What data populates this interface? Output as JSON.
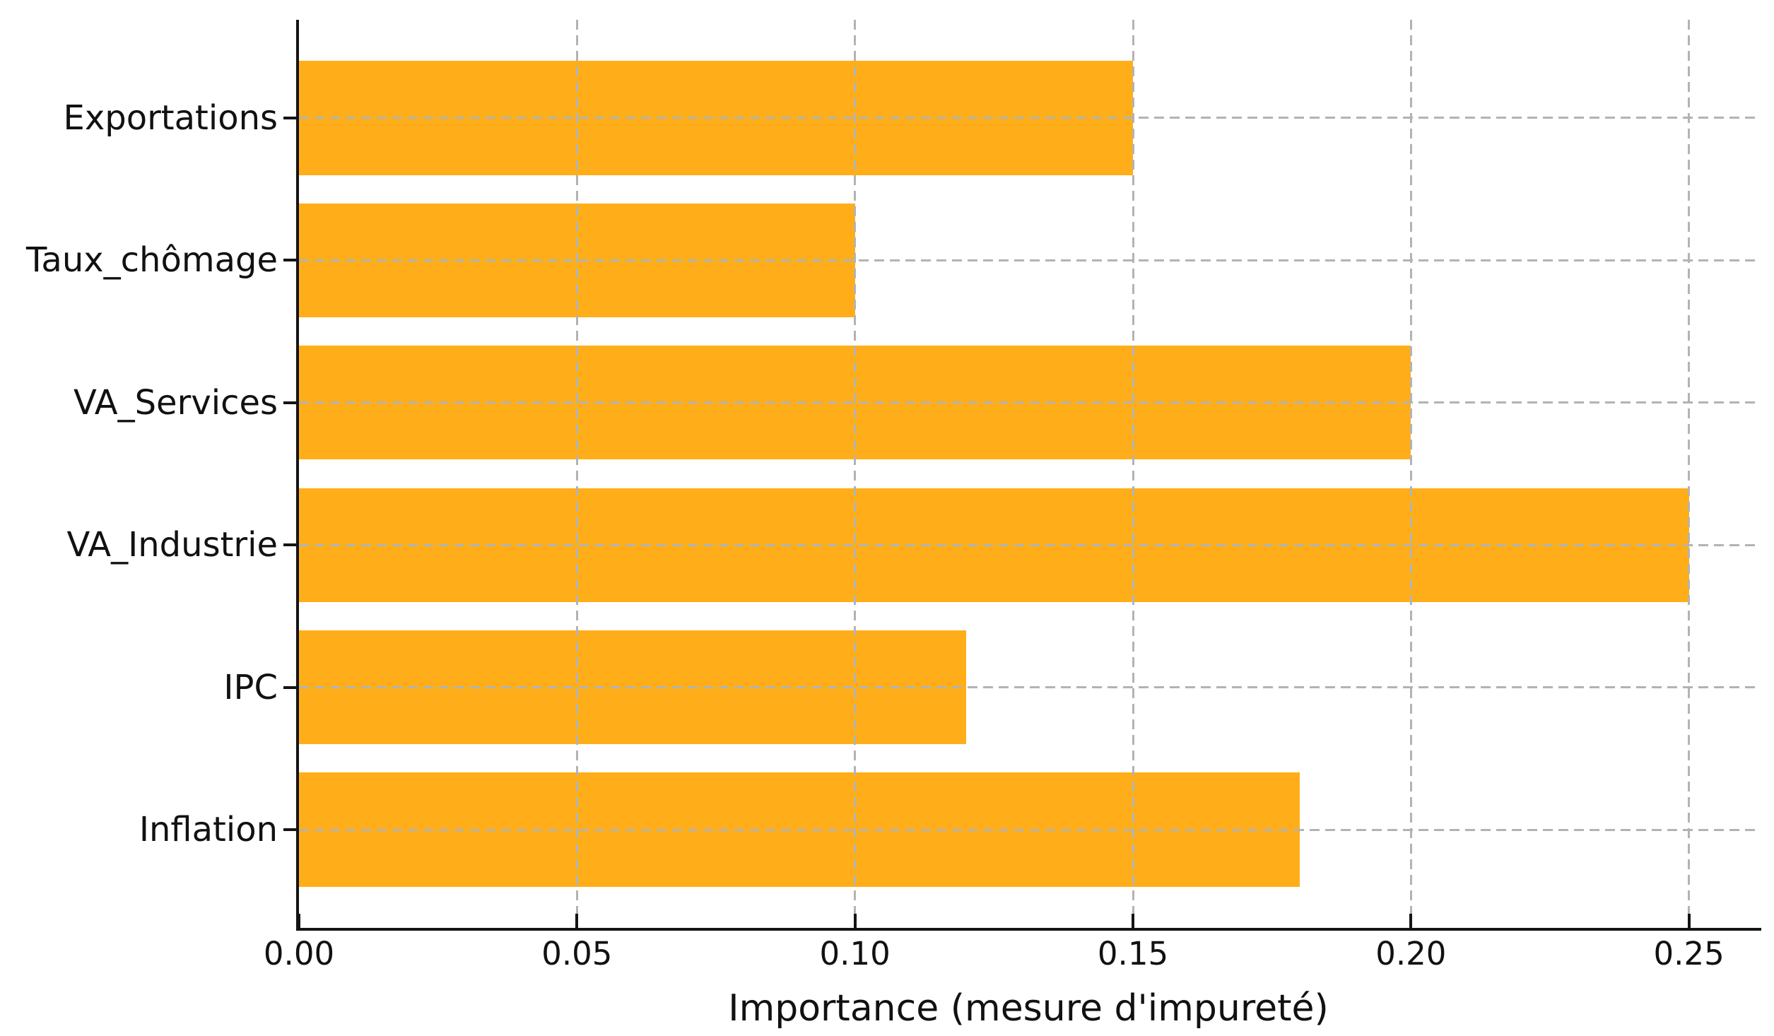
{
  "chart_data": {
    "type": "bar",
    "orientation": "horizontal",
    "title": "",
    "xlabel": "Importance (mesure d'impureté)",
    "ylabel": "",
    "categories": [
      "Exportations",
      "Taux_chômage",
      "VA_Services",
      "VA_Industrie",
      "IPC",
      "Inflation"
    ],
    "values": [
      0.15,
      0.1,
      0.2,
      0.25,
      0.12,
      0.18
    ],
    "xtick_labels": [
      "0.00",
      "0.05",
      "0.10",
      "0.15",
      "0.20",
      "0.25"
    ],
    "xtick_values": [
      0,
      0.05,
      0.1,
      0.15,
      0.2,
      0.25
    ],
    "xlim": [
      0,
      0.2625
    ],
    "bar_height_fraction": 0.8,
    "grid": "dashed, vertical at x ticks and horizontal at bar centers, drawn above bars",
    "legend_position": "none",
    "colors": {
      "bar": "#ffae19",
      "grid": "#b3b3b3",
      "axis": "#141414",
      "text": "#111111",
      "background": "#ffffff"
    }
  }
}
